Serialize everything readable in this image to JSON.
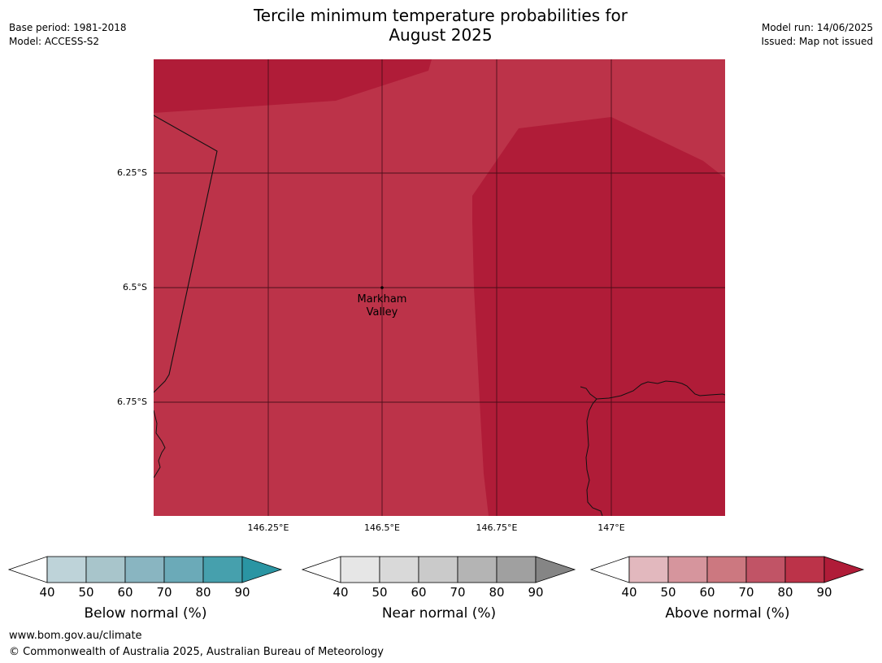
{
  "header": {
    "title_line1": "Tercile minimum temperature probabilities for",
    "title_line2": "August 2025",
    "base_period": "Base period: 1981-2018",
    "model": "Model: ACCESS-S2",
    "model_run": "Model run: 14/06/2025",
    "issued": "Issued: Map not issued"
  },
  "map": {
    "lat_labels": [
      "6.25°S",
      "6.5°S",
      "6.75°S"
    ],
    "lon_labels": [
      "146.25°E",
      "146.5°E",
      "146.75°E",
      "147°E"
    ],
    "place_name_line1": "Markham",
    "place_name_line2": "Valley",
    "colors": {
      "above_80_90": "#bc3349",
      "above_90_plus": "#b01c38"
    }
  },
  "legends": [
    {
      "title": "Below normal (%)",
      "ticks": [
        "40",
        "50",
        "60",
        "70",
        "80",
        "90"
      ],
      "colors": [
        "#bed3d9",
        "#a8c5cb",
        "#89b5c1",
        "#6baab8",
        "#46a0ad",
        "#2a95a3"
      ]
    },
    {
      "title": "Near normal (%)",
      "ticks": [
        "40",
        "50",
        "60",
        "70",
        "80",
        "90"
      ],
      "colors": [
        "#e6e6e6",
        "#d9d9d9",
        "#cacaca",
        "#b4b4b4",
        "#a0a0a0",
        "#858585"
      ]
    },
    {
      "title": "Above normal (%)",
      "ticks": [
        "40",
        "50",
        "60",
        "70",
        "80",
        "90"
      ],
      "colors": [
        "#e2b8be",
        "#d6959d",
        "#cc7880",
        "#c15466",
        "#bc3349",
        "#b01c38"
      ]
    }
  ],
  "footer": {
    "website": "www.bom.gov.au/climate",
    "copyright": "© Commonwealth of Australia 2025, Australian Bureau of Meteorology"
  }
}
